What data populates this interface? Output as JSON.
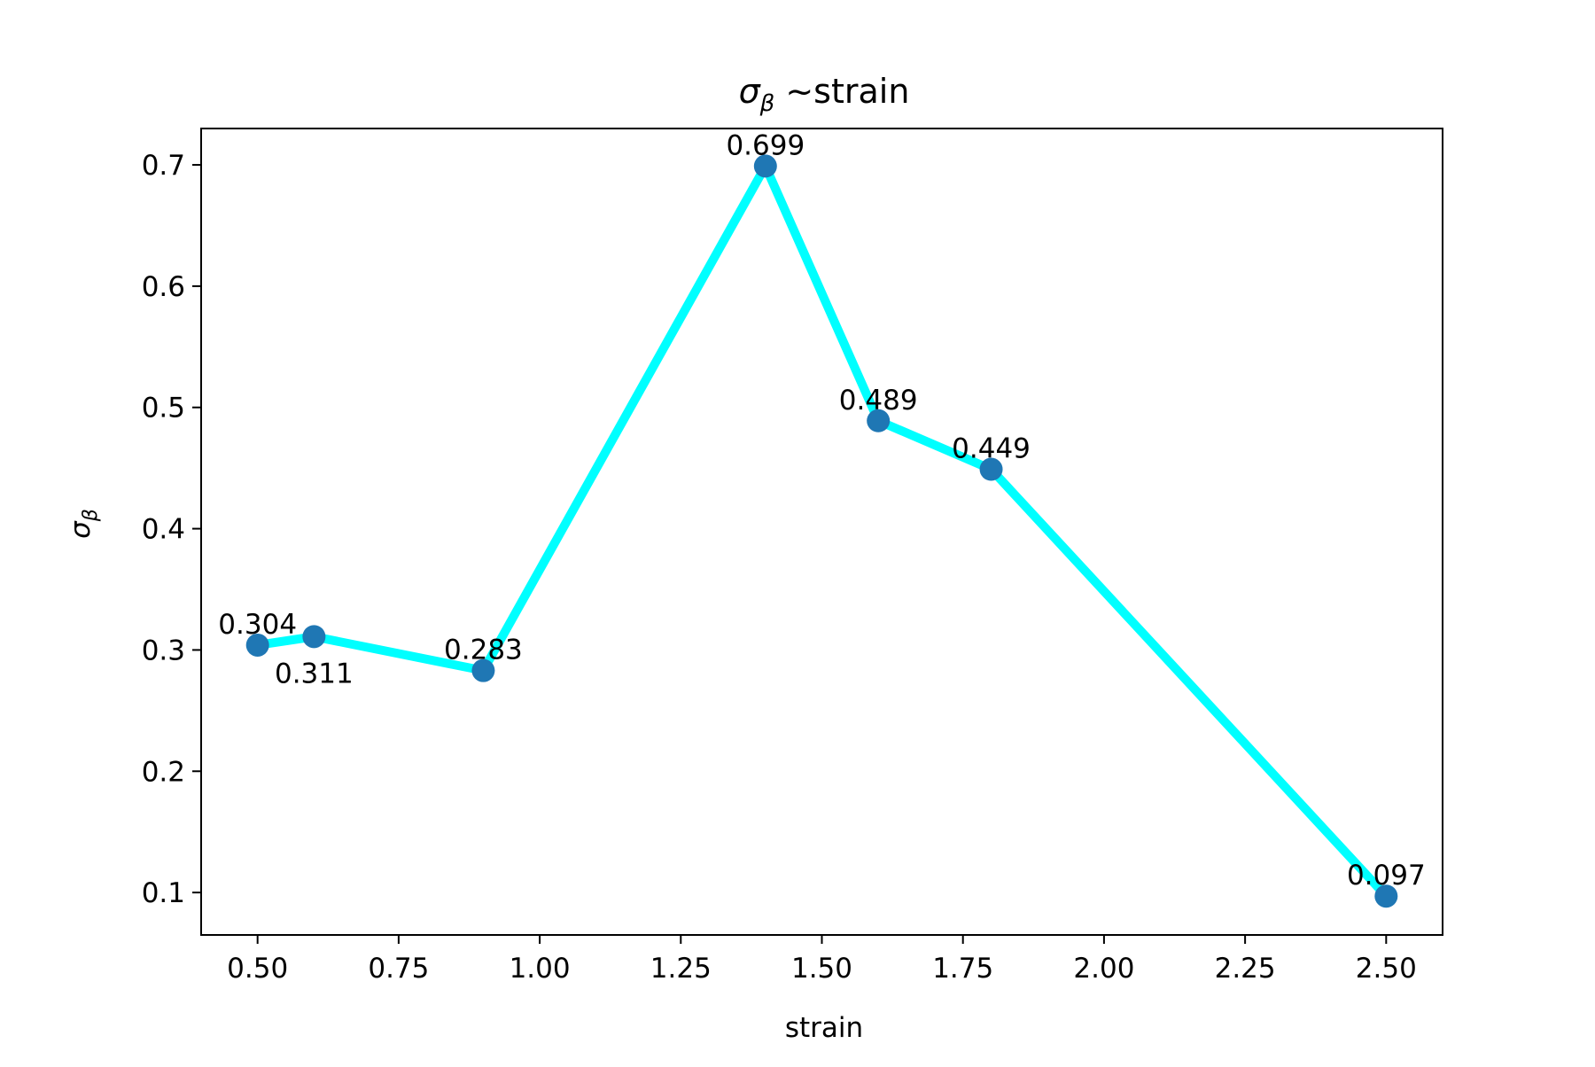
{
  "chart_data": {
    "type": "line",
    "title": "σβ ~strain",
    "title_main": "σ",
    "title_sub": "β",
    "title_rest": " ~strain",
    "xlabel": "strain",
    "ylabel_main": "σ",
    "ylabel_sub": "β",
    "xlim": [
      0.4,
      2.6
    ],
    "ylim": [
      0.065,
      0.73
    ],
    "x_ticks": [
      0.5,
      0.75,
      1.0,
      1.25,
      1.5,
      1.75,
      2.0,
      2.25,
      2.5
    ],
    "x_tick_labels": [
      "0.50",
      "0.75",
      "1.00",
      "1.25",
      "1.50",
      "1.75",
      "2.00",
      "2.25",
      "2.50"
    ],
    "y_ticks": [
      0.1,
      0.2,
      0.3,
      0.4,
      0.5,
      0.6,
      0.7
    ],
    "y_tick_labels": [
      "0.1",
      "0.2",
      "0.3",
      "0.4",
      "0.5",
      "0.6",
      "0.7"
    ],
    "grid": false,
    "legend": "none",
    "series": [
      {
        "x": [
          0.5,
          0.6,
          0.9,
          1.4,
          1.6,
          1.8,
          2.5
        ],
        "y": [
          0.304,
          0.311,
          0.283,
          0.699,
          0.489,
          0.449,
          0.097
        ],
        "data_labels": [
          "0.304",
          "0.311",
          "0.283",
          "0.699",
          "0.489",
          "0.449",
          "0.097"
        ],
        "label_placement": [
          "above",
          "below",
          "above",
          "above",
          "above",
          "above",
          "above"
        ],
        "line_color": "#00ffff",
        "marker_color": "#1f77b4"
      }
    ]
  }
}
